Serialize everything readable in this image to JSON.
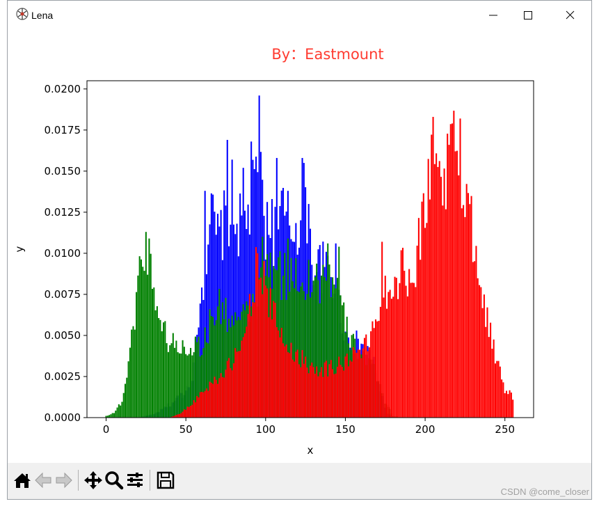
{
  "window": {
    "title": "Lena",
    "icon": "lena-app-icon",
    "controls": [
      "minimize-icon",
      "maximize-icon",
      "close-icon"
    ]
  },
  "toolbar": {
    "buttons": [
      "home-icon",
      "back-icon",
      "forward-icon",
      "pan-icon",
      "zoom-icon",
      "configure-subplots-icon",
      "save-icon"
    ]
  },
  "watermark": "CSDN @come_closer",
  "chart_data": {
    "type": "bar",
    "title": "By：Eastmount",
    "title_color": "#ff3b30",
    "xlabel": "x",
    "ylabel": "y",
    "xlim": [
      -12,
      268
    ],
    "ylim": [
      0,
      0.0205
    ],
    "xticks": [
      "0",
      "50",
      "100",
      "150",
      "200",
      "250"
    ],
    "yticks": [
      "0.0000",
      "0.0025",
      "0.0050",
      "0.0075",
      "0.0100",
      "0.0125",
      "0.0150",
      "0.0175",
      "0.0200"
    ],
    "grid": false,
    "draw_order": [
      "blue",
      "green",
      "red"
    ],
    "series": [
      {
        "color": "#0000ff",
        "keypoints": [
          [
            0,
            0
          ],
          [
            20,
            0
          ],
          [
            30,
            0.0002
          ],
          [
            40,
            0.0008
          ],
          [
            50,
            0.0016
          ],
          [
            55,
            0.003
          ],
          [
            58,
            0.0065
          ],
          [
            62,
            0.009
          ],
          [
            65,
            0.0125
          ],
          [
            70,
            0.0108
          ],
          [
            75,
            0.012
          ],
          [
            78,
            0.0125
          ],
          [
            85,
            0.0115
          ],
          [
            90,
            0.0125
          ],
          [
            95,
            0.0145
          ],
          [
            98,
            0.0138
          ],
          [
            100,
            0.0115
          ],
          [
            105,
            0.011
          ],
          [
            110,
            0.0125
          ],
          [
            115,
            0.0112
          ],
          [
            120,
            0.0118
          ],
          [
            125,
            0.012
          ],
          [
            130,
            0.0093
          ],
          [
            135,
            0.0092
          ],
          [
            140,
            0.0088
          ],
          [
            145,
            0.0075
          ],
          [
            150,
            0.005
          ],
          [
            155,
            0.0046
          ],
          [
            160,
            0.0045
          ],
          [
            163,
            0.004
          ],
          [
            168,
            0.0033
          ],
          [
            172,
            0.0015
          ],
          [
            176,
            0.0003
          ],
          [
            180,
            0
          ],
          [
            255,
            0
          ]
        ],
        "spikes": [
          [
            62,
            0.0138
          ],
          [
            76,
            0.0169
          ],
          [
            79,
            0.0157
          ],
          [
            86,
            0.0152
          ],
          [
            91,
            0.0168
          ],
          [
            96,
            0.0196
          ],
          [
            104,
            0.0133
          ],
          [
            107,
            0.0158
          ],
          [
            114,
            0.0138
          ],
          [
            123,
            0.0158
          ],
          [
            124,
            0.0155
          ],
          [
            127,
            0.013
          ],
          [
            144,
            0.0106
          ],
          [
            158,
            0.0048
          ]
        ]
      },
      {
        "color": "#008000",
        "keypoints": [
          [
            0,
            0.0001
          ],
          [
            5,
            0.0003
          ],
          [
            10,
            0.001
          ],
          [
            15,
            0.0038
          ],
          [
            18,
            0.0065
          ],
          [
            20,
            0.0085
          ],
          [
            22,
            0.0095
          ],
          [
            25,
            0.0105
          ],
          [
            27,
            0.0098
          ],
          [
            30,
            0.0082
          ],
          [
            33,
            0.0063
          ],
          [
            36,
            0.0053
          ],
          [
            40,
            0.0046
          ],
          [
            45,
            0.0043
          ],
          [
            50,
            0.0043
          ],
          [
            55,
            0.0044
          ],
          [
            60,
            0.0045
          ],
          [
            63,
            0.0048
          ],
          [
            65,
            0.0058
          ],
          [
            70,
            0.0068
          ],
          [
            75,
            0.0063
          ],
          [
            80,
            0.006
          ],
          [
            85,
            0.0058
          ],
          [
            90,
            0.0065
          ],
          [
            95,
            0.0072
          ],
          [
            100,
            0.0088
          ],
          [
            105,
            0.009
          ],
          [
            110,
            0.0086
          ],
          [
            115,
            0.0085
          ],
          [
            120,
            0.0088
          ],
          [
            125,
            0.0082
          ],
          [
            130,
            0.0083
          ],
          [
            135,
            0.0083
          ],
          [
            140,
            0.0085
          ],
          [
            145,
            0.0078
          ],
          [
            150,
            0.0055
          ],
          [
            155,
            0.0044
          ],
          [
            160,
            0.004
          ],
          [
            165,
            0.0034
          ],
          [
            170,
            0.0024
          ],
          [
            175,
            0.001
          ],
          [
            180,
            0.0001
          ],
          [
            185,
            0
          ],
          [
            255,
            0
          ]
        ],
        "spikes": [
          [
            25,
            0.0113
          ],
          [
            98,
            0.011
          ],
          [
            114,
            0.0109
          ],
          [
            127,
            0.0096
          ],
          [
            136,
            0.0093
          ],
          [
            139,
            0.0106
          ],
          [
            146,
            0.0104
          ]
        ]
      },
      {
        "color": "#ff0000",
        "keypoints": [
          [
            0,
            0
          ],
          [
            40,
            0
          ],
          [
            45,
            0.0002
          ],
          [
            50,
            0.0005
          ],
          [
            55,
            0.001
          ],
          [
            60,
            0.0015
          ],
          [
            65,
            0.002
          ],
          [
            70,
            0.0025
          ],
          [
            75,
            0.0028
          ],
          [
            80,
            0.0035
          ],
          [
            85,
            0.0042
          ],
          [
            90,
            0.0068
          ],
          [
            93,
            0.0085
          ],
          [
            95,
            0.0095
          ],
          [
            97,
            0.0093
          ],
          [
            100,
            0.0078
          ],
          [
            105,
            0.0062
          ],
          [
            110,
            0.005
          ],
          [
            115,
            0.0042
          ],
          [
            120,
            0.0038
          ],
          [
            125,
            0.0034
          ],
          [
            130,
            0.0031
          ],
          [
            135,
            0.003
          ],
          [
            140,
            0.003
          ],
          [
            145,
            0.0032
          ],
          [
            150,
            0.0034
          ],
          [
            155,
            0.0038
          ],
          [
            160,
            0.0042
          ],
          [
            165,
            0.0044
          ],
          [
            170,
            0.0068
          ],
          [
            175,
            0.0078
          ],
          [
            180,
            0.0083
          ],
          [
            185,
            0.0088
          ],
          [
            190,
            0.009
          ],
          [
            195,
            0.0098
          ],
          [
            200,
            0.013
          ],
          [
            205,
            0.016
          ],
          [
            210,
            0.0145
          ],
          [
            215,
            0.0155
          ],
          [
            220,
            0.0165
          ],
          [
            225,
            0.0135
          ],
          [
            230,
            0.0115
          ],
          [
            235,
            0.0085
          ],
          [
            240,
            0.0055
          ],
          [
            245,
            0.0033
          ],
          [
            250,
            0.0018
          ],
          [
            255,
            0.0012
          ]
        ],
        "spikes": [
          [
            95,
            0.01
          ],
          [
            173,
            0.0107
          ],
          [
            205,
            0.0183
          ],
          [
            217,
            0.0179
          ],
          [
            222,
            0.0182
          ]
        ]
      }
    ]
  }
}
